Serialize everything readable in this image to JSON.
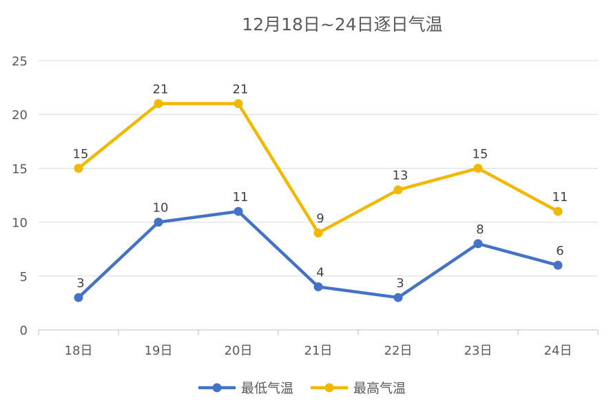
{
  "chart_data": {
    "type": "line",
    "title": "12月18日~24日逐日气温",
    "categories": [
      "18日",
      "19日",
      "20日",
      "21日",
      "22日",
      "23日",
      "24日"
    ],
    "series": [
      {
        "name": "最低气温",
        "values": [
          3,
          10,
          11,
          4,
          3,
          8,
          6
        ],
        "color": "#4472C4"
      },
      {
        "name": "最高气温",
        "values": [
          15,
          21,
          21,
          9,
          13,
          15,
          11
        ],
        "color": "#F2B800"
      }
    ],
    "ylim": [
      0,
      25
    ],
    "yticks": [
      0,
      5,
      10,
      15,
      20,
      25
    ],
    "grid": true,
    "data_labels": true,
    "legend": "bottom"
  }
}
